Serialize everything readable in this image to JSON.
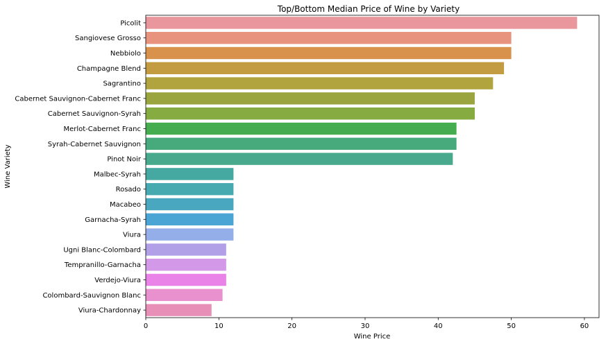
{
  "chart_data": {
    "type": "bar",
    "orientation": "horizontal",
    "title": "Top/Bottom Median Price of Wine by Variety",
    "xlabel": "Wine Price",
    "ylabel": "Wine Variety",
    "xlim": [
      0,
      62
    ],
    "xticks": [
      0,
      10,
      20,
      30,
      40,
      50,
      60
    ],
    "grid": false,
    "categories": [
      "Picolit",
      "Sangiovese Grosso",
      "Nebbiolo",
      "Champagne Blend",
      "Sagrantino",
      "Cabernet Sauvignon-Cabernet Franc",
      "Cabernet Sauvignon-Syrah",
      "Merlot-Cabernet Franc",
      "Syrah-Cabernet Sauvignon",
      "Pinot Noir",
      "Malbec-Syrah",
      "Rosado",
      "Macabeo",
      "Garnacha-Syrah",
      "Viura",
      "Ugni Blanc-Colombard",
      "Tempranillo-Garnacha",
      "Verdejo-Viura",
      "Colombard-Sauvignon Blanc",
      "Viura-Chardonnay"
    ],
    "values": [
      59,
      50,
      50,
      49,
      47.5,
      45,
      45,
      42.5,
      42.5,
      42,
      12,
      12,
      12,
      12,
      12,
      11,
      11,
      11,
      10.5,
      9
    ],
    "colors": [
      "#e9969d",
      "#e8937e",
      "#d8924b",
      "#c39b41",
      "#b1a33d",
      "#9aa540",
      "#86ab40",
      "#45ad4f",
      "#47aa7c",
      "#48a98c",
      "#46a9a1",
      "#47aab1",
      "#49a7bf",
      "#4aa5d5",
      "#93aee8",
      "#b1a0e8",
      "#d498e8",
      "#e983e8",
      "#e991cf",
      "#e88fb7"
    ]
  }
}
